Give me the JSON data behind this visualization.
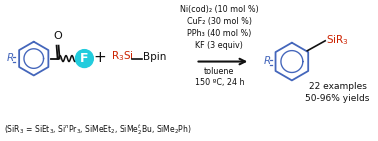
{
  "bg_color": "#ffffff",
  "conditions_lines": [
    "Ni(cod)₂ (10 mol %)",
    "CuF₂ (30 mol %)",
    "PPh₃ (40 mol %)",
    "KF (3 equiv)",
    "toluene",
    "150 ºC, 24 h"
  ],
  "examples_text": "22 examples",
  "yields_text": "50-96% yields",
  "blue_color": "#4466bb",
  "red_color": "#cc2200",
  "cyan_color": "#22ccdd",
  "dark_color": "#111111",
  "gray_color": "#444444"
}
